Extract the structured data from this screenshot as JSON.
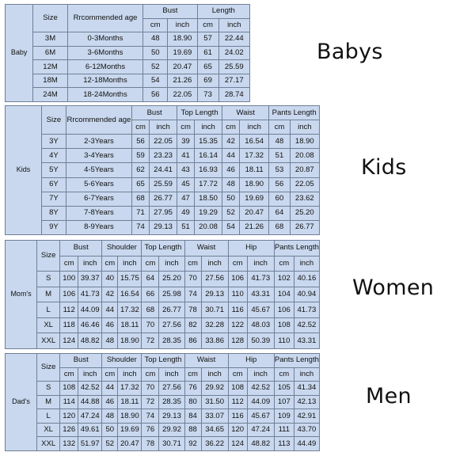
{
  "charts": [
    {
      "category": "Baby",
      "section_label": "Babys",
      "size_header": "Size",
      "age_header": "Rrcommended age",
      "groups": [
        "Bust",
        "Length"
      ],
      "units": [
        "cm",
        "inch"
      ],
      "rows": [
        {
          "size": "3M",
          "age": "0-3Months",
          "values": [
            "48",
            "18.90",
            "57",
            "22.44"
          ]
        },
        {
          "size": "6M",
          "age": "3-6Months",
          "values": [
            "50",
            "19.69",
            "61",
            "24.02"
          ]
        },
        {
          "size": "12M",
          "age": "6-12Months",
          "values": [
            "52",
            "20.47",
            "65",
            "25.59"
          ]
        },
        {
          "size": "18M",
          "age": "12-18Months",
          "values": [
            "54",
            "21.26",
            "69",
            "27.17"
          ]
        },
        {
          "size": "24M",
          "age": "18-24Months",
          "values": [
            "56",
            "22.05",
            "73",
            "28.74"
          ]
        }
      ]
    },
    {
      "category": "Kids",
      "section_label": "Kids",
      "size_header": "Size",
      "age_header": "Rrcommended age",
      "groups": [
        "Bust",
        "Top Length",
        "Waist",
        "Pants Length"
      ],
      "units": [
        "cm",
        "inch"
      ],
      "rows": [
        {
          "size": "3Y",
          "age": "2-3Years",
          "values": [
            "56",
            "22.05",
            "39",
            "15.35",
            "42",
            "16.54",
            "48",
            "18.90"
          ]
        },
        {
          "size": "4Y",
          "age": "3-4Years",
          "values": [
            "59",
            "23.23",
            "41",
            "16.14",
            "44",
            "17.32",
            "51",
            "20.08"
          ]
        },
        {
          "size": "5Y",
          "age": "4-5Years",
          "values": [
            "62",
            "24.41",
            "43",
            "16.93",
            "46",
            "18.11",
            "53",
            "20.87"
          ]
        },
        {
          "size": "6Y",
          "age": "5-6Years",
          "values": [
            "65",
            "25.59",
            "45",
            "17.72",
            "48",
            "18.90",
            "56",
            "22.05"
          ]
        },
        {
          "size": "7Y",
          "age": "6-7Years",
          "values": [
            "68",
            "26.77",
            "47",
            "18.50",
            "50",
            "19.69",
            "60",
            "23.62"
          ]
        },
        {
          "size": "8Y",
          "age": "7-8Years",
          "values": [
            "71",
            "27.95",
            "49",
            "19.29",
            "52",
            "20.47",
            "64",
            "25.20"
          ]
        },
        {
          "size": "9Y",
          "age": "8-9Years",
          "values": [
            "74",
            "29.13",
            "51",
            "20.08",
            "54",
            "21.26",
            "68",
            "26.77"
          ]
        }
      ]
    },
    {
      "category": "Mom's",
      "section_label": "Women",
      "size_header": "Size",
      "groups": [
        "Bust",
        "Shoulder",
        "Top Length",
        "Waist",
        "Hip",
        "Pants Length"
      ],
      "units": [
        "cm",
        "inch"
      ],
      "rows": [
        {
          "size": "S",
          "values": [
            "100",
            "39.37",
            "40",
            "15.75",
            "64",
            "25.20",
            "70",
            "27.56",
            "106",
            "41.73",
            "102",
            "40.16"
          ]
        },
        {
          "size": "M",
          "values": [
            "106",
            "41.73",
            "42",
            "16.54",
            "66",
            "25.98",
            "74",
            "29.13",
            "110",
            "43.31",
            "104",
            "40.94"
          ]
        },
        {
          "size": "L",
          "values": [
            "112",
            "44.09",
            "44",
            "17.32",
            "68",
            "26.77",
            "78",
            "30.71",
            "116",
            "45.67",
            "106",
            "41.73"
          ]
        },
        {
          "size": "XL",
          "values": [
            "118",
            "46.46",
            "46",
            "18.11",
            "70",
            "27.56",
            "82",
            "32.28",
            "122",
            "48.03",
            "108",
            "42.52"
          ]
        },
        {
          "size": "XXL",
          "values": [
            "124",
            "48.82",
            "48",
            "18.90",
            "72",
            "28.35",
            "86",
            "33.86",
            "128",
            "50.39",
            "110",
            "43.31"
          ]
        }
      ]
    },
    {
      "category": "Dad's",
      "section_label": "Men",
      "size_header": "Size",
      "groups": [
        "Bust",
        "Shoulder",
        "Top Length",
        "Waist",
        "Hip",
        "Pants Length"
      ],
      "units": [
        "cm",
        "inch"
      ],
      "rows": [
        {
          "size": "S",
          "values": [
            "108",
            "42.52",
            "44",
            "17.32",
            "70",
            "27.56",
            "76",
            "29.92",
            "108",
            "42.52",
            "105",
            "41.34"
          ]
        },
        {
          "size": "M",
          "values": [
            "114",
            "44.88",
            "46",
            "18.11",
            "72",
            "28.35",
            "80",
            "31.50",
            "112",
            "44.09",
            "107",
            "42.13"
          ]
        },
        {
          "size": "L",
          "values": [
            "120",
            "47.24",
            "48",
            "18.90",
            "74",
            "29.13",
            "84",
            "33.07",
            "116",
            "45.67",
            "109",
            "42.91"
          ]
        },
        {
          "size": "XL",
          "values": [
            "126",
            "49.61",
            "50",
            "19.69",
            "76",
            "29.92",
            "88",
            "34.65",
            "120",
            "47.24",
            "111",
            "43.70"
          ]
        },
        {
          "size": "XXL",
          "values": [
            "132",
            "51.97",
            "52",
            "20.47",
            "78",
            "30.71",
            "92",
            "36.22",
            "124",
            "48.82",
            "113",
            "44.49"
          ]
        }
      ]
    }
  ]
}
